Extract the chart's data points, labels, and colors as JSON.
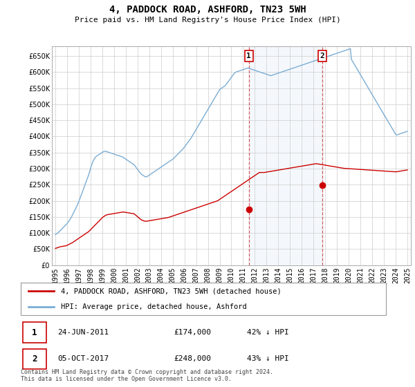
{
  "title": "4, PADDOCK ROAD, ASHFORD, TN23 5WH",
  "subtitle": "Price paid vs. HM Land Registry's House Price Index (HPI)",
  "ylim": [
    0,
    680000
  ],
  "yticks": [
    0,
    50000,
    100000,
    150000,
    200000,
    250000,
    300000,
    350000,
    400000,
    450000,
    500000,
    550000,
    600000,
    650000
  ],
  "hpi_color": "#7aadd4",
  "price_color": "#cc0000",
  "background_color": "#ffffff",
  "grid_color": "#cccccc",
  "transaction1_date": "24-JUN-2011",
  "transaction1_price": 174000,
  "transaction1_hpi_pct": "42% ↓ HPI",
  "transaction2_date": "05-OCT-2017",
  "transaction2_price": 248000,
  "transaction2_hpi_pct": "43% ↓ HPI",
  "legend_label_price": "4, PADDOCK ROAD, ASHFORD, TN23 5WH (detached house)",
  "legend_label_hpi": "HPI: Average price, detached house, Ashford",
  "footnote": "Contains HM Land Registry data © Crown copyright and database right 2024.\nThis data is licensed under the Open Government Licence v3.0.",
  "xstart_year": 1995,
  "xend_year": 2025,
  "hpi_data": [
    95000,
    97000,
    99000,
    101000,
    104000,
    107000,
    110000,
    113000,
    116000,
    119000,
    122000,
    125000,
    128000,
    132000,
    136000,
    140000,
    145000,
    150000,
    156000,
    162000,
    168000,
    174000,
    180000,
    186000,
    193000,
    200000,
    208000,
    216000,
    224000,
    232000,
    240000,
    248000,
    256000,
    264000,
    272000,
    280000,
    290000,
    300000,
    310000,
    318000,
    325000,
    330000,
    335000,
    338000,
    340000,
    342000,
    344000,
    345000,
    348000,
    350000,
    352000,
    353000,
    354000,
    354000,
    353000,
    352000,
    351000,
    350000,
    349000,
    348000,
    347000,
    346000,
    345000,
    344000,
    343000,
    342000,
    341000,
    340000,
    339000,
    338000,
    337000,
    336000,
    334000,
    332000,
    330000,
    328000,
    326000,
    324000,
    322000,
    320000,
    318000,
    316000,
    314000,
    312000,
    308000,
    304000,
    300000,
    296000,
    292000,
    288000,
    285000,
    282000,
    280000,
    278000,
    276000,
    274000,
    275000,
    276000,
    278000,
    280000,
    282000,
    284000,
    286000,
    288000,
    290000,
    292000,
    294000,
    296000,
    298000,
    300000,
    302000,
    304000,
    306000,
    308000,
    310000,
    312000,
    314000,
    316000,
    318000,
    320000,
    322000,
    324000,
    326000,
    328000,
    330000,
    333000,
    336000,
    339000,
    342000,
    345000,
    348000,
    351000,
    354000,
    357000,
    360000,
    363000,
    367000,
    371000,
    375000,
    379000,
    383000,
    387000,
    391000,
    395000,
    400000,
    405000,
    410000,
    415000,
    420000,
    425000,
    430000,
    435000,
    440000,
    445000,
    450000,
    455000,
    460000,
    465000,
    470000,
    475000,
    480000,
    485000,
    490000,
    495000,
    500000,
    505000,
    510000,
    515000,
    520000,
    525000,
    530000,
    535000,
    540000,
    545000,
    548000,
    550000,
    552000,
    554000,
    556000,
    558000,
    562000,
    566000,
    570000,
    574000,
    578000,
    582000,
    586000,
    590000,
    594000,
    598000,
    600000,
    601000,
    602000,
    603000,
    604000,
    605000,
    606000,
    607000,
    608000,
    609000,
    610000,
    611000,
    612000,
    613000,
    612000,
    611000,
    610000,
    609000,
    608000,
    607000,
    606000,
    605000,
    604000,
    603000,
    602000,
    601000,
    600000,
    599000,
    598000,
    597000,
    596000,
    595000,
    594000,
    593000,
    592000,
    591000,
    590000,
    589000,
    590000,
    591000,
    592000,
    593000,
    594000,
    595000,
    596000,
    597000,
    598000,
    599000,
    600000,
    601000,
    602000,
    603000,
    604000,
    605000,
    606000,
    607000,
    608000,
    609000,
    610000,
    611000,
    612000,
    613000,
    614000,
    615000,
    616000,
    617000,
    618000,
    619000,
    620000,
    621000,
    622000,
    623000,
    624000,
    625000,
    626000,
    627000,
    628000,
    629000,
    630000,
    631000,
    632000,
    633000,
    634000,
    635000,
    636000,
    637000,
    638000,
    639000,
    640000,
    641000,
    642000,
    643000,
    644000,
    645000,
    646000,
    647000,
    648000,
    649000,
    650000,
    651000,
    652000,
    653000,
    654000,
    655000,
    656000,
    657000,
    658000,
    659000,
    660000,
    661000,
    662000,
    663000,
    664000,
    665000,
    666000,
    667000,
    668000,
    669000,
    670000,
    671000,
    672000,
    673000,
    640000,
    635000,
    630000,
    625000,
    620000,
    615000,
    610000,
    605000,
    600000,
    595000,
    590000,
    585000,
    580000,
    575000,
    570000,
    565000,
    560000,
    555000,
    550000,
    545000,
    540000,
    535000,
    530000,
    525000,
    520000,
    515000,
    510000,
    505000,
    500000,
    495000,
    490000,
    485000,
    480000,
    475000,
    470000,
    465000,
    460000,
    455000,
    450000,
    445000,
    440000,
    435000,
    430000,
    425000,
    420000,
    415000,
    410000,
    405000,
    405000,
    406000,
    407000,
    408000,
    409000,
    410000,
    411000,
    412000,
    413000,
    414000,
    415000,
    416000
  ],
  "price_data": [
    52000,
    53000,
    54000,
    55000,
    56000,
    57000,
    57500,
    58000,
    58500,
    59000,
    59500,
    60000,
    61000,
    62500,
    64000,
    65500,
    67000,
    68500,
    70000,
    72000,
    74000,
    76000,
    78000,
    80000,
    82000,
    84000,
    86000,
    88000,
    90000,
    92000,
    94000,
    96000,
    98000,
    100000,
    102000,
    104000,
    107000,
    110000,
    113000,
    116000,
    119000,
    122000,
    125000,
    128000,
    131000,
    134000,
    137000,
    140000,
    143000,
    146000,
    149000,
    151000,
    153000,
    155000,
    156000,
    157000,
    157500,
    158000,
    158500,
    159000,
    159500,
    160000,
    160500,
    161000,
    161500,
    162000,
    162500,
    163000,
    163500,
    164000,
    164500,
    165000,
    165000,
    164500,
    164000,
    163500,
    163000,
    162500,
    162000,
    161500,
    161000,
    160500,
    160000,
    159500,
    157000,
    154500,
    152000,
    149500,
    147000,
    144500,
    142000,
    140000,
    139000,
    138000,
    137000,
    136000,
    136500,
    137000,
    137500,
    138000,
    138500,
    139000,
    139500,
    140000,
    140500,
    141000,
    141500,
    142000,
    142500,
    143000,
    143500,
    144000,
    144500,
    145000,
    145500,
    146000,
    146500,
    147000,
    147500,
    148000,
    149000,
    150000,
    151000,
    152000,
    153000,
    154000,
    155000,
    156000,
    157000,
    158000,
    159000,
    160000,
    161000,
    162000,
    163000,
    164000,
    165000,
    166000,
    167000,
    168000,
    169000,
    170000,
    171000,
    172000,
    173000,
    174000,
    175000,
    176000,
    177000,
    178000,
    179000,
    180000,
    181000,
    182000,
    183000,
    184000,
    185000,
    186000,
    187000,
    188000,
    189000,
    190000,
    191000,
    192000,
    193000,
    194000,
    195000,
    196000,
    197000,
    198000,
    199000,
    200000,
    202000,
    204000,
    206000,
    208000,
    210000,
    212000,
    214000,
    216000,
    218000,
    220000,
    222000,
    224000,
    226000,
    228000,
    230000,
    232000,
    234000,
    236000,
    238000,
    240000,
    242000,
    244000,
    246000,
    248000,
    250000,
    252000,
    254000,
    256000,
    258000,
    260000,
    262000,
    264000,
    266000,
    268000,
    270000,
    272000,
    274000,
    276000,
    278000,
    280000,
    282000,
    284000,
    286000,
    288000,
    288000,
    288000,
    288000,
    288000,
    288000,
    288500,
    289000,
    289500,
    290000,
    290500,
    291000,
    291500,
    292000,
    292500,
    293000,
    293500,
    294000,
    294500,
    295000,
    295500,
    296000,
    296500,
    297000,
    297500,
    298000,
    298500,
    299000,
    299500,
    300000,
    300500,
    301000,
    301500,
    302000,
    302500,
    303000,
    303500,
    304000,
    304500,
    305000,
    305500,
    306000,
    306500,
    307000,
    307500,
    308000,
    308500,
    309000,
    309500,
    310000,
    310500,
    311000,
    311500,
    312000,
    312500,
    313000,
    313500,
    314000,
    314500,
    315000,
    315500,
    315000,
    314500,
    314000,
    313500,
    313000,
    312500,
    312000,
    311500,
    311000,
    310500,
    310000,
    309500,
    309000,
    308500,
    308000,
    307500,
    307000,
    306500,
    306000,
    305500,
    305000,
    304500,
    304000,
    303500,
    303000,
    302500,
    302000,
    301500,
    301000,
    300800,
    300600,
    300400,
    300200,
    300000,
    299800,
    299600,
    299400,
    299200,
    299000,
    298800,
    298600,
    298400,
    298200,
    298000,
    297800,
    297600,
    297400,
    297200,
    297000,
    296800,
    296600,
    296400,
    296200,
    296000,
    295800,
    295600,
    295400,
    295200,
    295000,
    294800,
    294600,
    294400,
    294200,
    294000,
    293800,
    293600,
    293400,
    293200,
    293000,
    292800,
    292600,
    292400,
    292200,
    292000,
    291800,
    291600,
    291400,
    291200,
    291000,
    290800,
    290600,
    290400,
    290200,
    290000,
    290500,
    291000,
    291500,
    292000,
    292500,
    293000,
    293500,
    294000,
    294500,
    295000,
    295500,
    296000
  ]
}
